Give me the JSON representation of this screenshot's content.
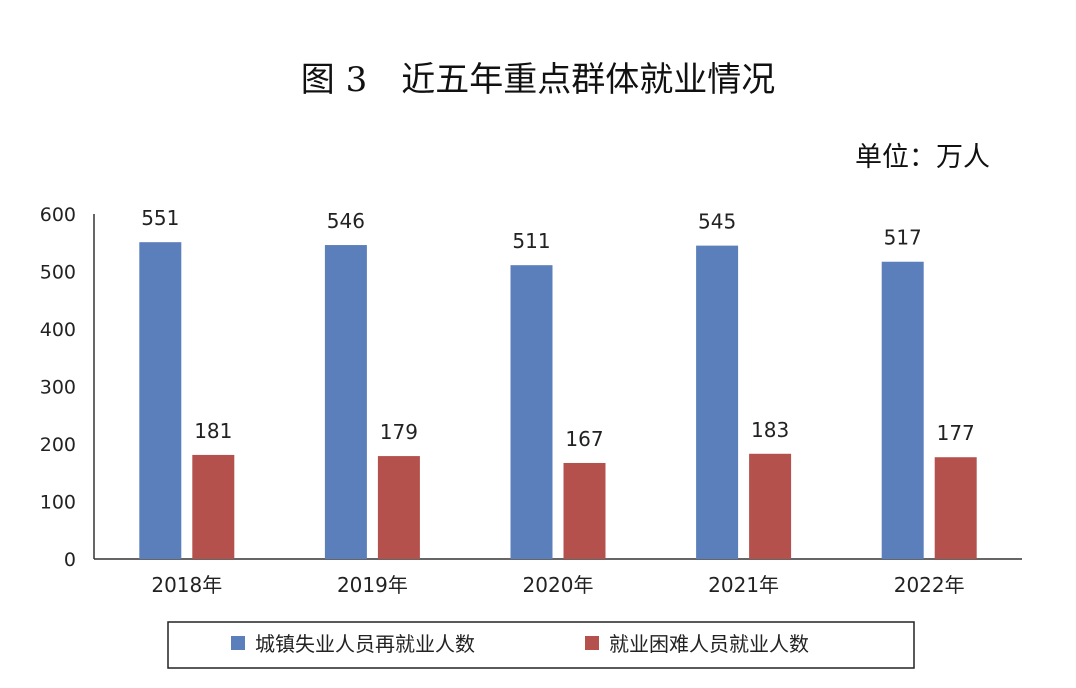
{
  "title": "图 3　近五年重点群体就业情况",
  "unit": "单位：万人",
  "colors": {
    "series1": "#5b7fbb",
    "series2": "#b5514d"
  },
  "chart_data": {
    "type": "bar",
    "categories": [
      "2018年",
      "2019年",
      "2020年",
      "2021年",
      "2022年"
    ],
    "series": [
      {
        "name": "城镇失业人员再就业人数",
        "values": [
          551,
          546,
          511,
          545,
          517
        ]
      },
      {
        "name": "就业困难人员就业人数",
        "values": [
          181,
          179,
          167,
          183,
          177
        ]
      }
    ],
    "yticks": [
      "0",
      "100",
      "200",
      "300",
      "400",
      "500",
      "600"
    ],
    "ylim": [
      0,
      600
    ],
    "grid": false,
    "legend": "bottom"
  }
}
